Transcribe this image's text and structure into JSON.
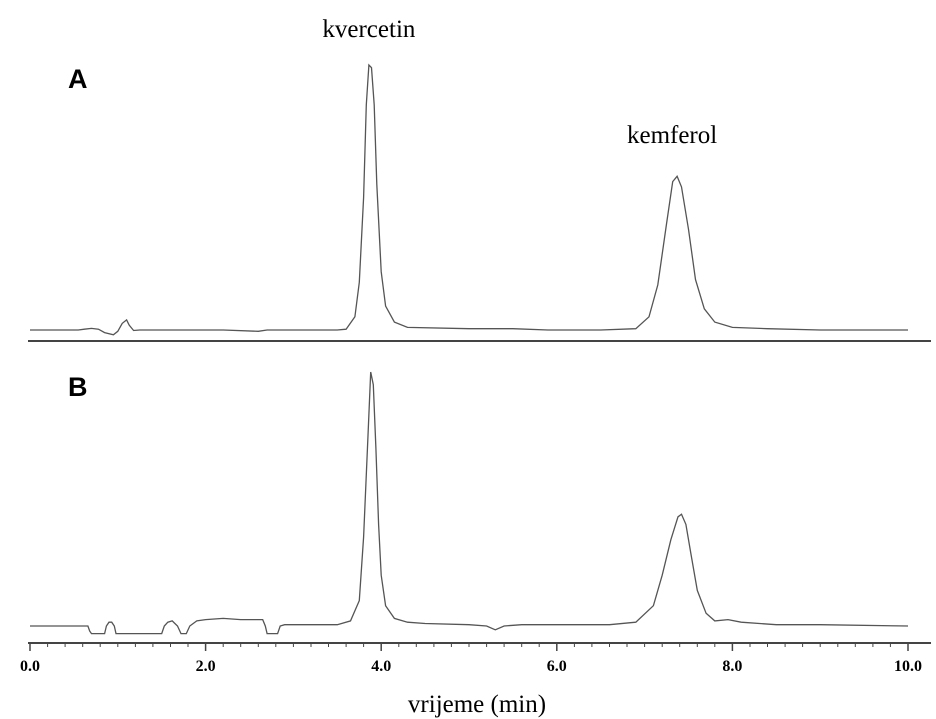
{
  "chart_data": [
    {
      "type": "line",
      "panel_label": "A",
      "xlim": [
        0,
        10
      ],
      "x": [
        0.0,
        0.55,
        0.62,
        0.7,
        0.78,
        0.85,
        0.95,
        1.0,
        1.05,
        1.1,
        1.13,
        1.18,
        1.25,
        1.8,
        2.2,
        2.6,
        2.7,
        3.5,
        3.6,
        3.7,
        3.75,
        3.8,
        3.83,
        3.86,
        3.89,
        3.92,
        3.95,
        4.0,
        4.05,
        4.15,
        4.3,
        5.0,
        5.5,
        5.9,
        6.5,
        6.9,
        7.05,
        7.15,
        7.25,
        7.32,
        7.37,
        7.42,
        7.5,
        7.58,
        7.68,
        7.8,
        8.0,
        8.4,
        9.0,
        10.0
      ],
      "y": [
        0,
        0,
        0.3,
        0.6,
        0.3,
        -1.0,
        -1.8,
        -0.5,
        2.5,
        3.8,
        1.8,
        -0.2,
        0,
        0,
        0,
        -0.5,
        0,
        0,
        0.3,
        5,
        18,
        50,
        85,
        100,
        99,
        85,
        55,
        22,
        9,
        3,
        1,
        0.5,
        0.5,
        0,
        0,
        0.5,
        5,
        17,
        40,
        56,
        58,
        54,
        38,
        19,
        8,
        3,
        1,
        0.5,
        0,
        0
      ],
      "peak_labels": [
        {
          "text": "kvercetin",
          "x": 3.86
        },
        {
          "text": "kemferol",
          "x": 7.37
        }
      ]
    },
    {
      "type": "line",
      "panel_label": "B",
      "xlim": [
        0,
        10
      ],
      "x": [
        0.0,
        0.62,
        0.66,
        0.68,
        0.7,
        0.72,
        0.75,
        0.82,
        0.85,
        0.87,
        0.9,
        0.93,
        0.96,
        0.98,
        1.0,
        1.5,
        1.53,
        1.57,
        1.62,
        1.68,
        1.72,
        1.78,
        1.82,
        1.9,
        2.0,
        2.2,
        2.4,
        2.6,
        2.65,
        2.68,
        2.7,
        2.78,
        2.82,
        2.85,
        2.9,
        3.5,
        3.65,
        3.75,
        3.8,
        3.85,
        3.88,
        3.91,
        3.94,
        3.97,
        4.0,
        4.05,
        4.15,
        4.3,
        4.5,
        5.0,
        5.2,
        5.3,
        5.4,
        5.6,
        6.0,
        6.6,
        6.9,
        7.1,
        7.2,
        7.3,
        7.38,
        7.42,
        7.47,
        7.53,
        7.6,
        7.7,
        7.8,
        7.95,
        8.1,
        8.5,
        9.0,
        10.0
      ],
      "y": [
        0,
        0,
        0,
        -2,
        -3,
        -3,
        -3,
        -3,
        -3,
        0,
        1.5,
        1.5,
        0,
        -3,
        -3,
        -3,
        0,
        1.5,
        2,
        0,
        -3,
        -3,
        0,
        2,
        2.5,
        3,
        2.5,
        2.5,
        2.5,
        0,
        -3,
        -3,
        -3,
        0,
        0.5,
        0.5,
        2,
        10,
        35,
        75,
        100,
        95,
        70,
        40,
        20,
        8,
        3,
        1.5,
        1,
        0.5,
        0,
        -1.5,
        0,
        0.5,
        0.5,
        0.5,
        1.5,
        8,
        20,
        34,
        43,
        44,
        40,
        28,
        14,
        5,
        2,
        2.5,
        1.5,
        0.5,
        0.5,
        0
      ]
    }
  ],
  "axis": {
    "title": "vrijeme (min)",
    "ticks": [
      "0.0",
      "2.0",
      "4.0",
      "6.0",
      "8.0",
      "10.0"
    ],
    "tick_values": [
      0,
      2,
      4,
      6,
      8,
      10
    ]
  }
}
